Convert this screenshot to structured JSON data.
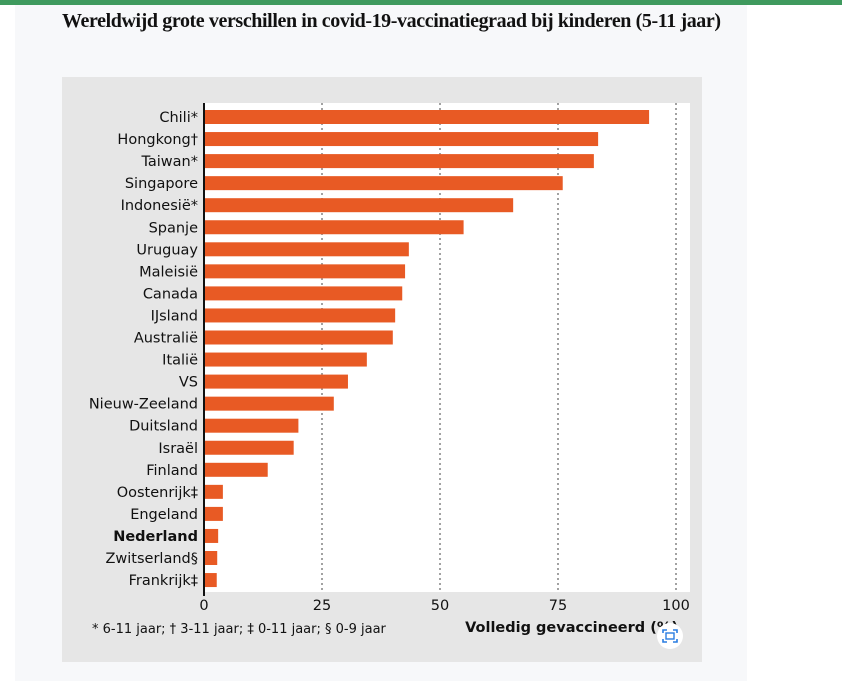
{
  "title": "Wereldwijd grote verschillen in covid-19-vaccinatiegraad bij kinderen (5-11 jaar)",
  "chart_data": {
    "type": "bar",
    "orientation": "horizontal",
    "categories": [
      "Chili*",
      "Hongkong†",
      "Taiwan*",
      "Singapore",
      "Indonesië*",
      "Spanje",
      "Uruguay",
      "Maleisië",
      "Canada",
      "IJsland",
      "Australië",
      "Italië",
      "VS",
      "Nieuw-Zeeland",
      "Duitsland",
      "Israël",
      "Finland",
      "Oostenrijk‡",
      "Engeland",
      "Nederland",
      "Zwitserland§",
      "Frankrijk‡"
    ],
    "values": [
      94.3,
      83.5,
      82.6,
      76,
      65.5,
      55,
      43.4,
      42.6,
      42,
      40.5,
      40,
      34.5,
      30.5,
      27.5,
      20,
      19,
      13.5,
      4,
      4,
      3,
      2.8,
      2.7
    ],
    "highlight": "Nederland",
    "xlabel": "Volledig gevaccineerd (%)",
    "xlim": [
      0,
      100
    ],
    "xticks": [
      "0",
      "25",
      "50",
      "75",
      "100"
    ],
    "grid": "vertical dotted",
    "bar_color": "#e85a24",
    "footnote": "* 6-11 jaar; † 3-11 jaar; ‡ 0-11 jaar; § 0-9 jaar"
  }
}
